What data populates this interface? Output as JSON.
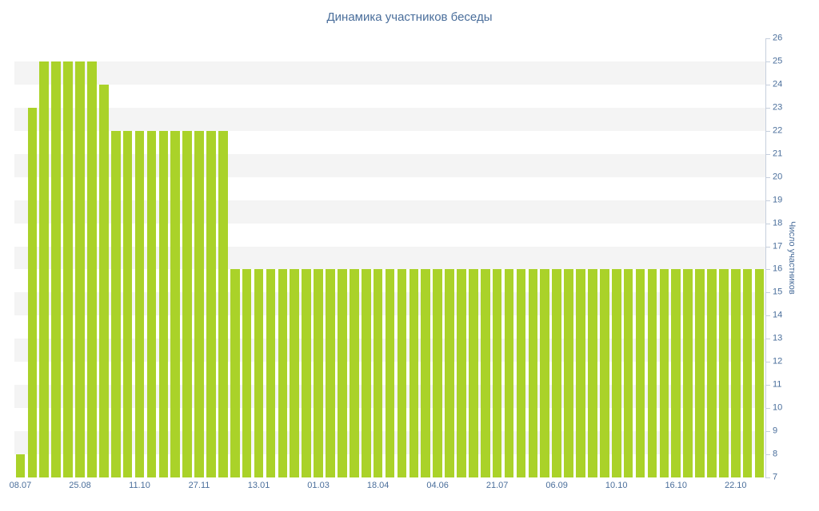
{
  "chart_data": {
    "type": "bar",
    "title": "Динамика участников беседы",
    "ylabel": "Число участников",
    "xlabel": "",
    "ylim": [
      7,
      26
    ],
    "y_ticks": [
      7,
      8,
      9,
      10,
      11,
      12,
      13,
      14,
      15,
      16,
      17,
      18,
      19,
      20,
      21,
      22,
      23,
      24,
      25,
      26
    ],
    "x_tick_labels": [
      "08.07",
      "25.08",
      "11.10",
      "27.11",
      "13.01",
      "01.03",
      "18.04",
      "04.06",
      "21.07",
      "06.09",
      "10.10",
      "16.10",
      "22.10"
    ],
    "x_label_every": 5,
    "n_points": 63,
    "values": [
      8,
      23,
      25,
      25,
      25,
      25,
      25,
      24,
      22,
      22,
      22,
      22,
      22,
      22,
      22,
      22,
      22,
      22,
      16,
      16,
      16,
      16,
      16,
      16,
      16,
      16,
      16,
      16,
      16,
      16,
      16,
      16,
      16,
      16,
      16,
      16,
      16,
      16,
      16,
      16,
      16,
      16,
      16,
      16,
      16,
      16,
      16,
      16,
      16,
      16,
      16,
      16,
      16,
      16,
      16,
      16,
      16,
      16,
      16,
      16,
      16,
      16,
      16
    ],
    "legend": "none",
    "grid": "alternating-horizontal-bands",
    "colors": {
      "bar": "#aad229",
      "band": "#f4f4f4",
      "axis_line": "#c6cfdd",
      "text": "#4a6e9b",
      "background": "#ffffff"
    }
  }
}
